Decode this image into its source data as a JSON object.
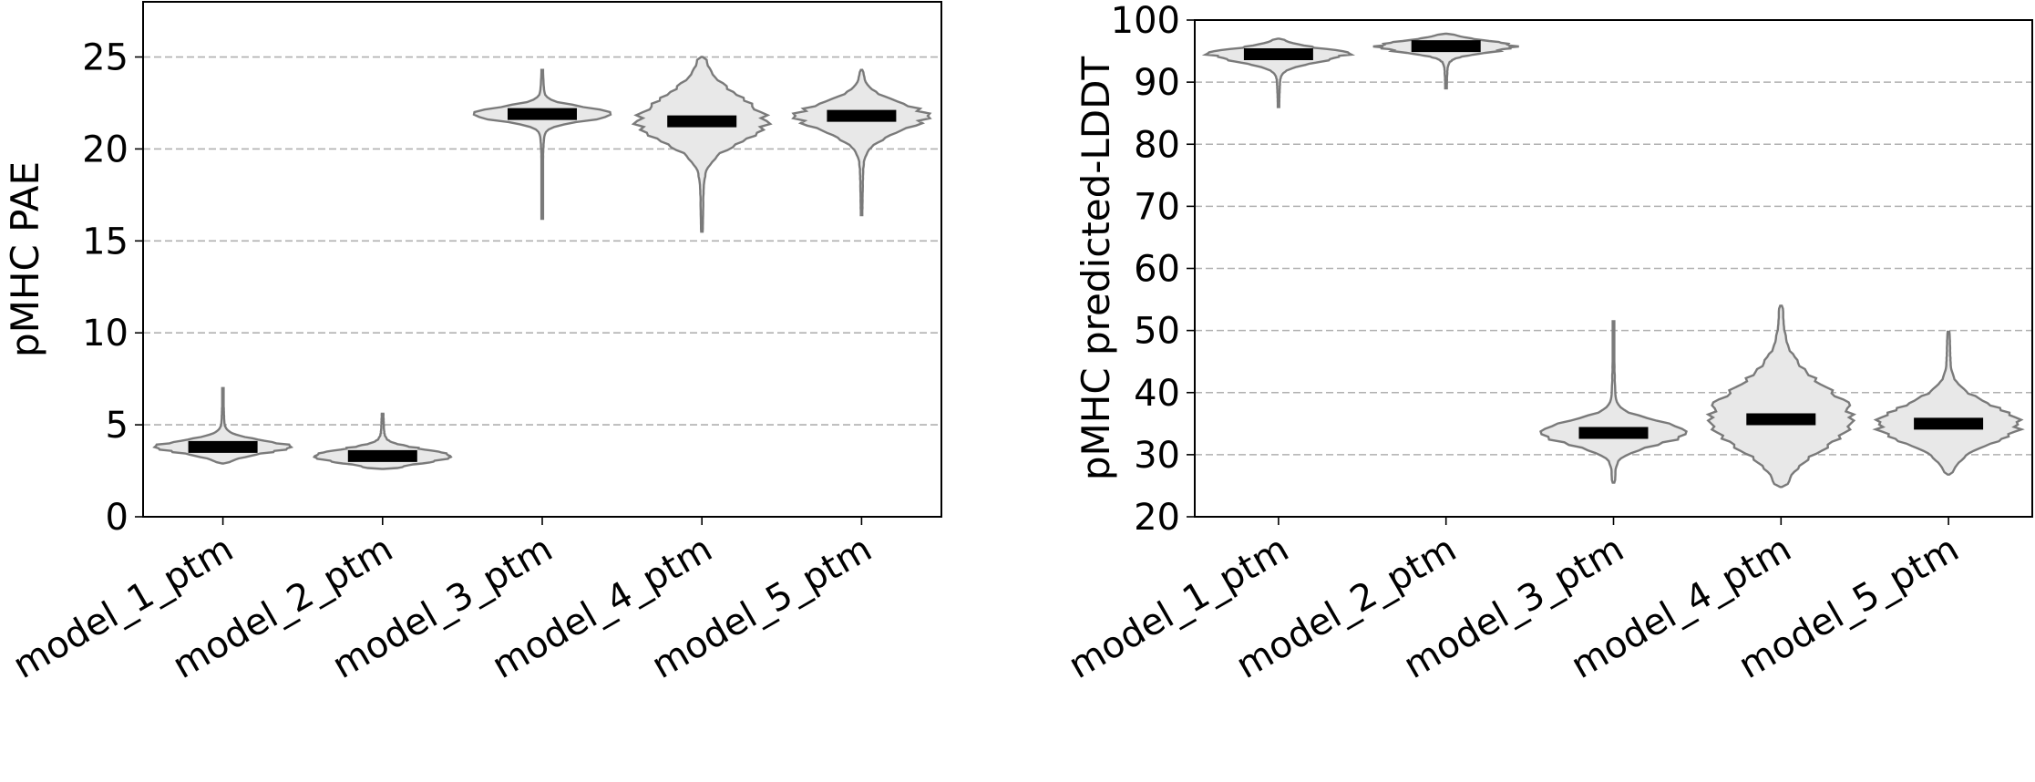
{
  "chart_data": [
    {
      "type": "violin",
      "title": "",
      "xlabel": "",
      "ylabel": "pMHC PAE",
      "ylim": [
        0,
        28
      ],
      "yticks": [
        0,
        5,
        10,
        15,
        20,
        25
      ],
      "grid": "horizontal-dashed",
      "categories": [
        "model_1_ptm",
        "model_2_ptm",
        "model_3_ptm",
        "model_4_ptm",
        "model_5_ptm"
      ],
      "series": [
        {
          "median": 3.8,
          "min": 2.9,
          "max": 7.0,
          "q1": 3.5,
          "q3": 4.1
        },
        {
          "median": 3.3,
          "min": 2.6,
          "max": 5.6,
          "q1": 3.0,
          "q3": 3.6
        },
        {
          "median": 21.9,
          "min": 16.2,
          "max": 24.3,
          "q1": 21.6,
          "q3": 22.2
        },
        {
          "median": 21.5,
          "min": 15.5,
          "max": 25.0,
          "q1": 20.6,
          "q3": 22.6
        },
        {
          "median": 21.8,
          "min": 16.4,
          "max": 24.3,
          "q1": 21.1,
          "q3": 22.4
        }
      ],
      "colors": {
        "fill": "#e8e8e8",
        "edge": "#7a7a7a",
        "median": "#000000"
      }
    },
    {
      "type": "violin",
      "title": "",
      "xlabel": "",
      "ylabel": "pMHC predicted-LDDT",
      "ylim": [
        20,
        100
      ],
      "yticks": [
        20,
        30,
        40,
        50,
        60,
        70,
        80,
        90,
        100
      ],
      "grid": "horizontal-dashed",
      "categories": [
        "model_1_ptm",
        "model_2_ptm",
        "model_3_ptm",
        "model_4_ptm",
        "model_5_ptm"
      ],
      "series": [
        {
          "median": 94.5,
          "min": 86.0,
          "max": 97.0,
          "q1": 93.5,
          "q3": 95.3
        },
        {
          "median": 95.8,
          "min": 89.0,
          "max": 97.8,
          "q1": 95.0,
          "q3": 96.5
        },
        {
          "median": 33.5,
          "min": 25.5,
          "max": 51.5,
          "q1": 32.0,
          "q3": 35.0
        },
        {
          "median": 35.7,
          "min": 24.8,
          "max": 54.0,
          "q1": 32.0,
          "q3": 40.0
        },
        {
          "median": 35.0,
          "min": 26.8,
          "max": 49.8,
          "q1": 32.5,
          "q3": 37.5
        }
      ],
      "colors": {
        "fill": "#e8e8e8",
        "edge": "#7a7a7a",
        "median": "#000000"
      }
    }
  ]
}
